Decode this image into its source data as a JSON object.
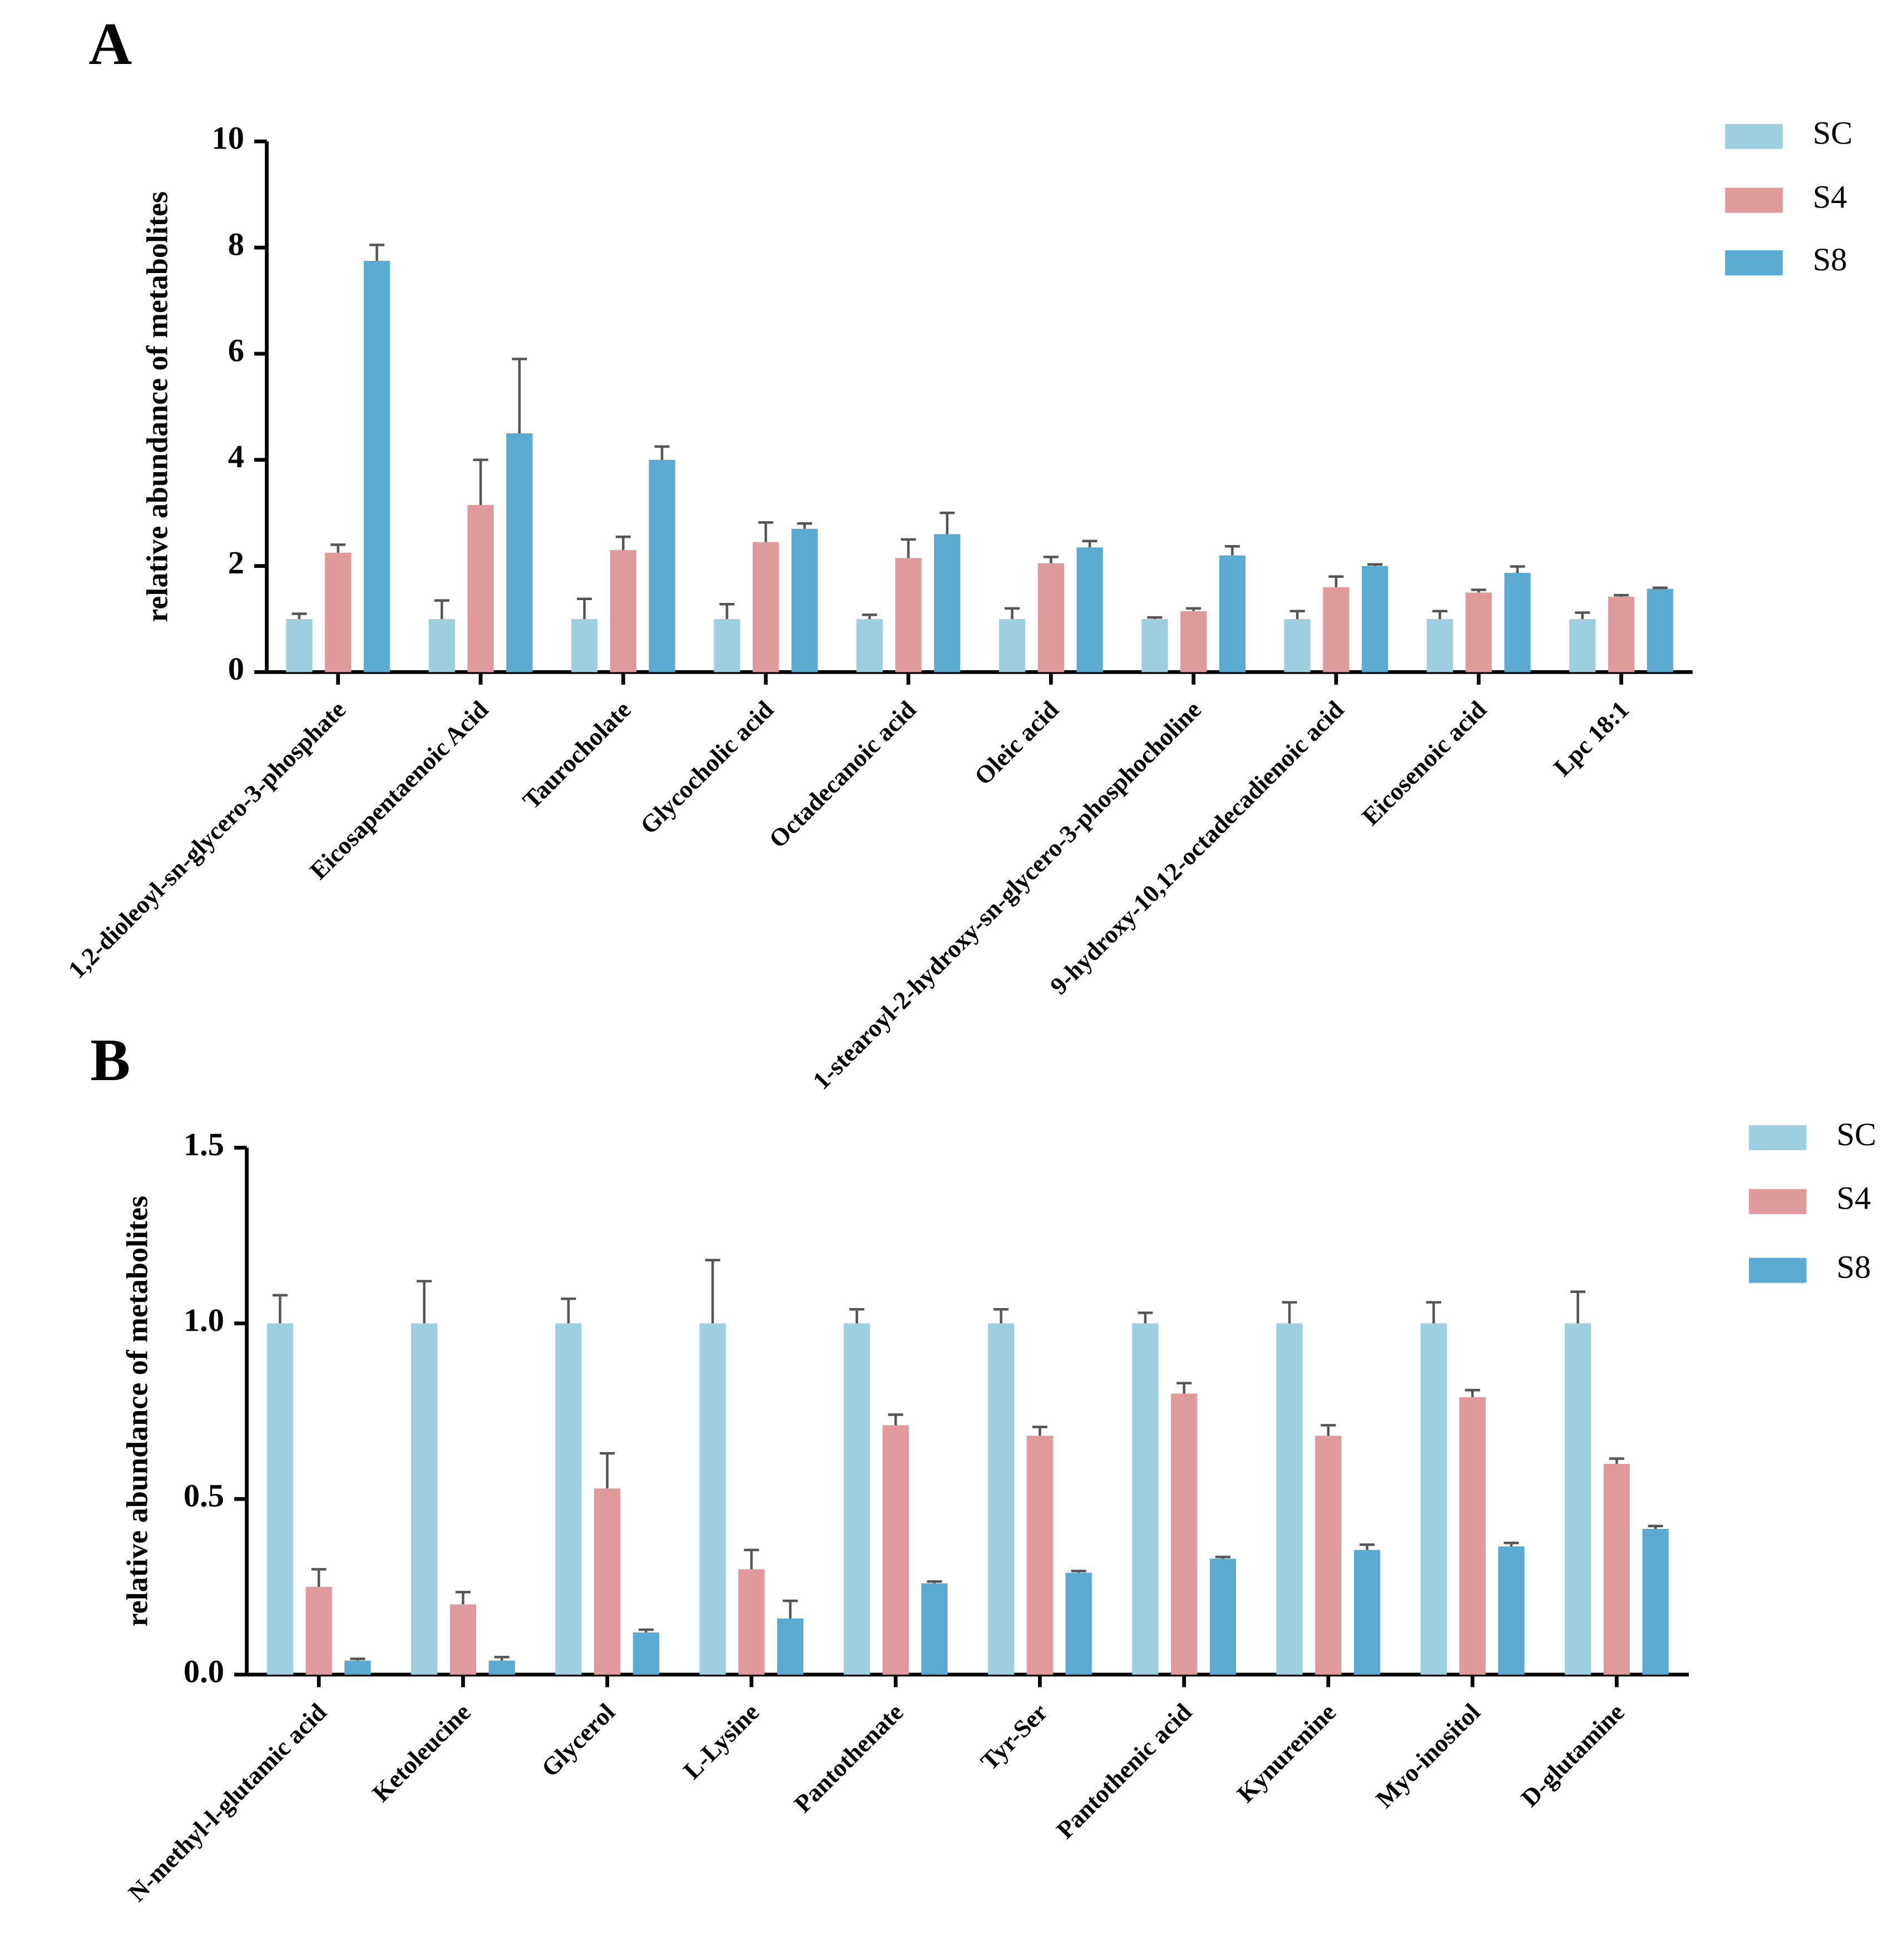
{
  "chart_data": [
    {
      "type": "bar",
      "panel_label": "A",
      "y_label": "relative abundance of metabolites",
      "categories": [
        "1,2-dioleoyl-sn-glycero-3-phosphate",
        "Eicosapentaenoic Acid",
        "Taurocholate",
        "Glycocholic acid",
        "Octadecanoic acid",
        "Oleic acid",
        "1-stearoyl-2-hydroxy-sn-glycero-3-phosphocholine",
        "9-hydroxy-10,12-octadecadienoic acid",
        "Eicosenoic acid",
        "Lpc 18:1"
      ],
      "series": [
        {
          "name": "SC",
          "color": "#9ecfe0",
          "values": [
            1,
            1,
            1,
            1,
            1,
            1,
            1,
            1,
            1,
            1
          ],
          "errors": [
            0.1,
            0.35,
            0.38,
            0.28,
            0.08,
            0.2,
            0.03,
            0.15,
            0.15,
            0.12
          ]
        },
        {
          "name": "S4",
          "color": "#e09a9c",
          "values": [
            2.25,
            3.15,
            2.3,
            2.45,
            2.15,
            2.05,
            1.15,
            1.6,
            1.5,
            1.42
          ],
          "errors": [
            0.15,
            0.85,
            0.25,
            0.37,
            0.35,
            0.12,
            0.05,
            0.2,
            0.05,
            0.03
          ]
        },
        {
          "name": "S8",
          "color": "#5aaad2",
          "values": [
            7.75,
            4.5,
            4.0,
            2.7,
            2.6,
            2.35,
            2.2,
            2.0,
            1.87,
            1.57
          ],
          "errors": [
            0.3,
            1.4,
            0.25,
            0.1,
            0.4,
            0.12,
            0.17,
            0.03,
            0.12,
            0.02
          ]
        }
      ],
      "ylim": [
        0,
        10
      ],
      "yticks": [
        0,
        2,
        4,
        6,
        8,
        10
      ],
      "legend": "right"
    },
    {
      "type": "bar",
      "panel_label": "B",
      "y_label": "relative abundance of metabolites",
      "categories": [
        "N-methyl-l-glutamic acid",
        "Ketoleucine",
        "Glycerol",
        "L-Lysine",
        "Pantothenate",
        "Tyr-Ser",
        "Pantothenic acid",
        "Kynurenine",
        "Myo-inositol",
        "D-glutamine"
      ],
      "series": [
        {
          "name": "SC",
          "color": "#9ecfe0",
          "values": [
            1,
            1,
            1,
            1,
            1,
            1,
            1,
            1,
            1,
            1
          ],
          "errors": [
            0.08,
            0.12,
            0.07,
            0.18,
            0.04,
            0.04,
            0.03,
            0.06,
            0.06,
            0.09
          ]
        },
        {
          "name": "S4",
          "color": "#e09a9c",
          "values": [
            0.25,
            0.2,
            0.53,
            0.3,
            0.71,
            0.68,
            0.8,
            0.68,
            0.79,
            0.6
          ],
          "errors": [
            0.05,
            0.035,
            0.1,
            0.055,
            0.03,
            0.025,
            0.03,
            0.03,
            0.02,
            0.015
          ]
        },
        {
          "name": "S8",
          "color": "#5aaad2",
          "values": [
            0.04,
            0.04,
            0.12,
            0.16,
            0.26,
            0.29,
            0.33,
            0.355,
            0.365,
            0.415
          ],
          "errors": [
            0.005,
            0.01,
            0.008,
            0.05,
            0.005,
            0.005,
            0.005,
            0.015,
            0.01,
            0.008
          ]
        }
      ],
      "ylim": [
        0,
        1.5
      ],
      "yticks": [
        {
          "value": 0,
          "label": "0.0"
        },
        0.5,
        {
          "value": 1,
          "label": "1.0"
        },
        1.5
      ],
      "legend": "right"
    }
  ]
}
